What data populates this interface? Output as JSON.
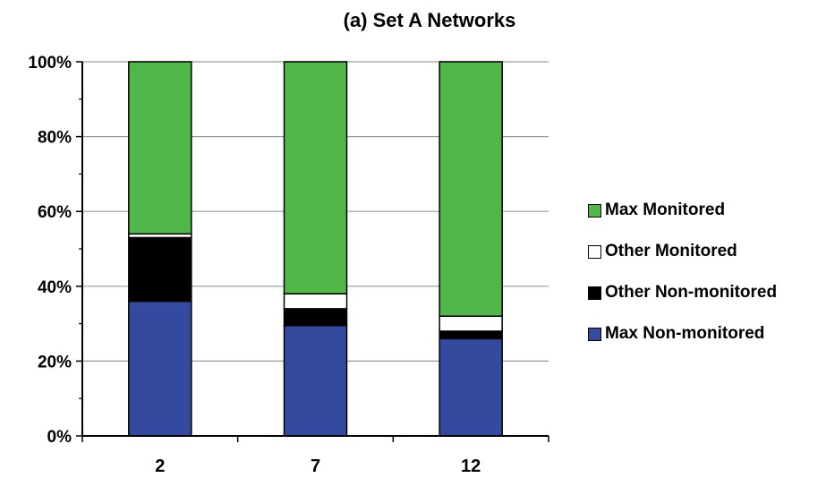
{
  "chart_data": {
    "type": "bar",
    "stacked": true,
    "title": "(a)  Set A Networks",
    "xlabel": "",
    "ylabel": "",
    "categories": [
      "2",
      "7",
      "12"
    ],
    "ylim": [
      0,
      100
    ],
    "yticks": [
      "0%",
      "20%",
      "40%",
      "60%",
      "80%",
      "100%"
    ],
    "grid": true,
    "legend_position": "right",
    "series": [
      {
        "name": "Max Non-monitored",
        "color": "#334a9f",
        "values": [
          36,
          29.5,
          26
        ]
      },
      {
        "name": "Other Non-monitored",
        "color": "#000000",
        "values": [
          17,
          4.5,
          2
        ]
      },
      {
        "name": "Other Monitored",
        "color": "#ffffff",
        "values": [
          1,
          4,
          4
        ]
      },
      {
        "name": "Max Monitored",
        "color": "#51b749",
        "values": [
          46,
          62,
          68
        ]
      }
    ]
  }
}
